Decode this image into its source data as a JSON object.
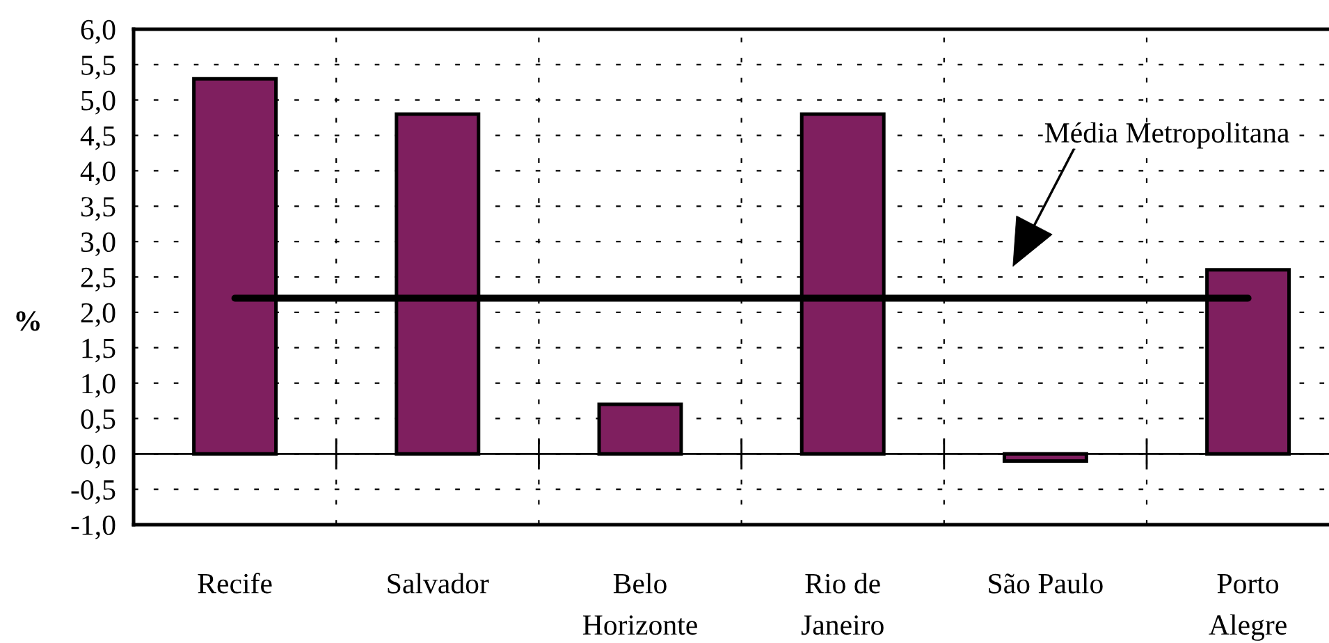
{
  "chart_data": {
    "type": "bar",
    "ylabel": "%",
    "categories": [
      "Recife",
      "Salvador",
      "Belo Horizonte",
      "Rio de Janeiro",
      "São Paulo",
      "Porto Alegre"
    ],
    "ylim": [
      -1,
      6
    ],
    "yticks": [
      {
        "value": -1,
        "label": "-1,0"
      },
      {
        "value": -0.5,
        "label": "-0,5"
      },
      {
        "value": 0,
        "label": "0,0"
      },
      {
        "value": 0.5,
        "label": "0,5"
      },
      {
        "value": 1,
        "label": "1,0"
      },
      {
        "value": 1.5,
        "label": "1,5"
      },
      {
        "value": 2,
        "label": "2,0"
      },
      {
        "value": 2.5,
        "label": "2,5"
      },
      {
        "value": 3,
        "label": "3,0"
      },
      {
        "value": 3.5,
        "label": "3,5"
      },
      {
        "value": 4,
        "label": "4,0"
      },
      {
        "value": 4.5,
        "label": "4,5"
      },
      {
        "value": 5,
        "label": "5,0"
      },
      {
        "value": 5.5,
        "label": "5,5"
      },
      {
        "value": 6,
        "label": "6,0"
      }
    ],
    "grid": true,
    "series": [
      {
        "color": "#7f1f5f",
        "values": [
          5.3,
          4.8,
          0.7,
          4.8,
          -0.1,
          2.6
        ]
      },
      {
        "type": "line",
        "name": "Média Metropolitana",
        "color": "#000000",
        "values": [
          2.2,
          2.2,
          2.2,
          2.2,
          2.2,
          2.2
        ]
      }
    ]
  }
}
